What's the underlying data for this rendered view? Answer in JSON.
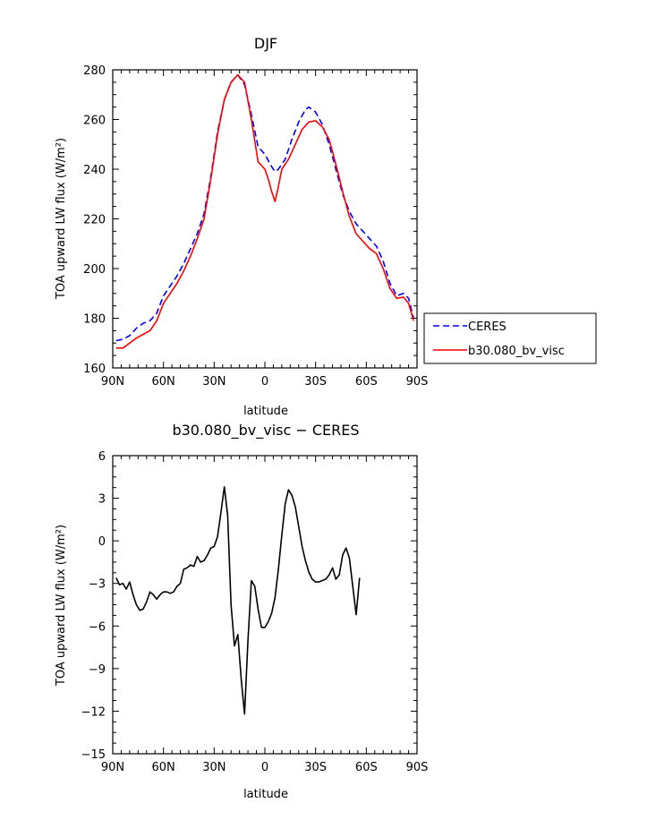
{
  "chart_data": [
    {
      "type": "line",
      "title": "DJF",
      "xlabel": "latitude",
      "ylabel": "TOA upward LW flux (W/m²)",
      "xlim": [
        -90,
        90
      ],
      "ylim": [
        160,
        280
      ],
      "x_ticks": [
        -90,
        -60,
        -30,
        0,
        30,
        60,
        90
      ],
      "x_tick_labels": [
        "90N",
        "60N",
        "30N",
        "0",
        "30S",
        "60S",
        "90S"
      ],
      "y_ticks": [
        160,
        180,
        200,
        220,
        240,
        260,
        280
      ],
      "y_tick_labels": [
        "160",
        "180",
        "200",
        "220",
        "240",
        "260",
        "280"
      ],
      "legend": "right",
      "series": [
        {
          "name": "CERES",
          "color": "#0000ff",
          "dash": "dashed",
          "points": [
            [
              -88,
              171
            ],
            [
              -84,
              171.5
            ],
            [
              -80,
              173
            ],
            [
              -76,
              176
            ],
            [
              -72,
              178
            ],
            [
              -68,
              179
            ],
            [
              -64,
              182
            ],
            [
              -60,
              189
            ],
            [
              -56,
              193
            ],
            [
              -52,
              197
            ],
            [
              -48,
              202
            ],
            [
              -44,
              208
            ],
            [
              -40,
              214
            ],
            [
              -36,
              222
            ],
            [
              -32,
              237
            ],
            [
              -28,
              255
            ],
            [
              -24,
              268
            ],
            [
              -20,
              275
            ],
            [
              -16,
              278
            ],
            [
              -12,
              274
            ],
            [
              -8,
              262
            ],
            [
              -4,
              249
            ],
            [
              0,
              246
            ],
            [
              4,
              241
            ],
            [
              6,
              239
            ],
            [
              8,
              240
            ],
            [
              12,
              244
            ],
            [
              16,
              252
            ],
            [
              20,
              259
            ],
            [
              24,
              264
            ],
            [
              26,
              265
            ],
            [
              30,
              263
            ],
            [
              34,
              258
            ],
            [
              38,
              250
            ],
            [
              42,
              240
            ],
            [
              46,
              230
            ],
            [
              50,
              223
            ],
            [
              54,
              218
            ],
            [
              58,
              215
            ],
            [
              62,
              212
            ],
            [
              66,
              209
            ],
            [
              70,
              203
            ],
            [
              74,
              194
            ],
            [
              78,
              189
            ],
            [
              82,
              190
            ],
            [
              85,
              188
            ],
            [
              88,
              180
            ]
          ]
        },
        {
          "name": "b30.080_bv_visc",
          "color": "#ff0000",
          "dash": "solid",
          "points": [
            [
              -88,
              168
            ],
            [
              -84,
              168
            ],
            [
              -80,
              170
            ],
            [
              -76,
              172
            ],
            [
              -72,
              173.5
            ],
            [
              -68,
              175
            ],
            [
              -64,
              179
            ],
            [
              -60,
              186
            ],
            [
              -56,
              190
            ],
            [
              -52,
              194
            ],
            [
              -48,
              199
            ],
            [
              -44,
              205
            ],
            [
              -40,
              212
            ],
            [
              -36,
              220
            ],
            [
              -32,
              236
            ],
            [
              -28,
              254
            ],
            [
              -24,
              268
            ],
            [
              -20,
              275
            ],
            [
              -16,
              278
            ],
            [
              -12,
              275
            ],
            [
              -8,
              260
            ],
            [
              -4,
              243
            ],
            [
              0,
              240
            ],
            [
              2,
              236
            ],
            [
              4,
              231
            ],
            [
              6,
              227
            ],
            [
              8,
              233
            ],
            [
              10,
              240
            ],
            [
              14,
              244
            ],
            [
              18,
              250
            ],
            [
              22,
              256
            ],
            [
              26,
              259
            ],
            [
              30,
              259.5
            ],
            [
              34,
              257
            ],
            [
              38,
              252
            ],
            [
              42,
              242
            ],
            [
              46,
              231
            ],
            [
              50,
              221
            ],
            [
              54,
              214
            ],
            [
              58,
              211
            ],
            [
              62,
              208
            ],
            [
              66,
              206
            ],
            [
              70,
              200
            ],
            [
              74,
              192
            ],
            [
              78,
              188
            ],
            [
              82,
              188.5
            ],
            [
              85,
              186
            ],
            [
              88,
              179
            ]
          ]
        }
      ]
    },
    {
      "type": "line",
      "title": "b30.080_bv_visc − CERES",
      "xlabel": "latitude",
      "ylabel": "TOA upward LW flux (W/m²)",
      "xlim": [
        -90,
        90
      ],
      "ylim": [
        -15,
        6
      ],
      "x_ticks": [
        -90,
        -60,
        -30,
        0,
        30,
        60,
        90
      ],
      "x_tick_labels": [
        "90N",
        "60N",
        "30N",
        "0",
        "30S",
        "60S",
        "90S"
      ],
      "y_ticks": [
        -15,
        -12,
        -9,
        -6,
        -3,
        0,
        3,
        6
      ],
      "y_tick_labels": [
        "−15",
        "−12",
        "−9",
        "−6",
        "−3",
        "0",
        "3",
        "6"
      ],
      "series": [
        {
          "color": "#000000",
          "dash": "solid",
          "points": [
            [
              -88,
              -2.6
            ],
            [
              -86,
              -3.1
            ],
            [
              -84,
              -3.0
            ],
            [
              -82,
              -3.4
            ],
            [
              -80,
              -2.9
            ],
            [
              -78,
              -3.8
            ],
            [
              -76,
              -4.5
            ],
            [
              -74,
              -4.9
            ],
            [
              -72,
              -4.8
            ],
            [
              -70,
              -4.3
            ],
            [
              -68,
              -3.6
            ],
            [
              -66,
              -3.8
            ],
            [
              -64,
              -4.1
            ],
            [
              -62,
              -3.8
            ],
            [
              -60,
              -3.6
            ],
            [
              -58,
              -3.6
            ],
            [
              -56,
              -3.7
            ],
            [
              -54,
              -3.6
            ],
            [
              -52,
              -3.2
            ],
            [
              -50,
              -3.0
            ],
            [
              -48,
              -2.0
            ],
            [
              -46,
              -1.9
            ],
            [
              -44,
              -1.7
            ],
            [
              -42,
              -1.8
            ],
            [
              -40,
              -1.1
            ],
            [
              -38,
              -1.5
            ],
            [
              -36,
              -1.4
            ],
            [
              -34,
              -1.0
            ],
            [
              -32,
              -0.5
            ],
            [
              -30,
              -0.4
            ],
            [
              -28,
              0.3
            ],
            [
              -26,
              2.0
            ],
            [
              -24,
              3.8
            ],
            [
              -22,
              1.8
            ],
            [
              -20,
              -4.5
            ],
            [
              -18,
              -7.4
            ],
            [
              -16,
              -6.6
            ],
            [
              -14,
              -9.8
            ],
            [
              -12,
              -12.2
            ],
            [
              -10,
              -7.0
            ],
            [
              -8,
              -2.8
            ],
            [
              -6,
              -3.2
            ],
            [
              -4,
              -4.8
            ],
            [
              -2,
              -6.1
            ],
            [
              0,
              -6.1
            ],
            [
              2,
              -5.7
            ],
            [
              4,
              -5.1
            ],
            [
              6,
              -4.0
            ],
            [
              8,
              -2.0
            ],
            [
              10,
              0.4
            ],
            [
              12,
              2.6
            ],
            [
              14,
              3.6
            ],
            [
              16,
              3.2
            ],
            [
              18,
              2.4
            ],
            [
              20,
              1.0
            ],
            [
              22,
              -0.4
            ],
            [
              24,
              -1.4
            ],
            [
              26,
              -2.2
            ],
            [
              28,
              -2.7
            ],
            [
              30,
              -2.9
            ],
            [
              32,
              -2.9
            ],
            [
              34,
              -2.8
            ],
            [
              36,
              -2.7
            ],
            [
              38,
              -2.4
            ],
            [
              40,
              -1.9
            ],
            [
              42,
              -2.7
            ],
            [
              44,
              -2.4
            ],
            [
              46,
              -1.0
            ],
            [
              48,
              -0.5
            ],
            [
              50,
              -1.2
            ],
            [
              52,
              -3.2
            ],
            [
              54,
              -5.2
            ],
            [
              56,
              -2.6
            ]
          ]
        }
      ]
    }
  ]
}
